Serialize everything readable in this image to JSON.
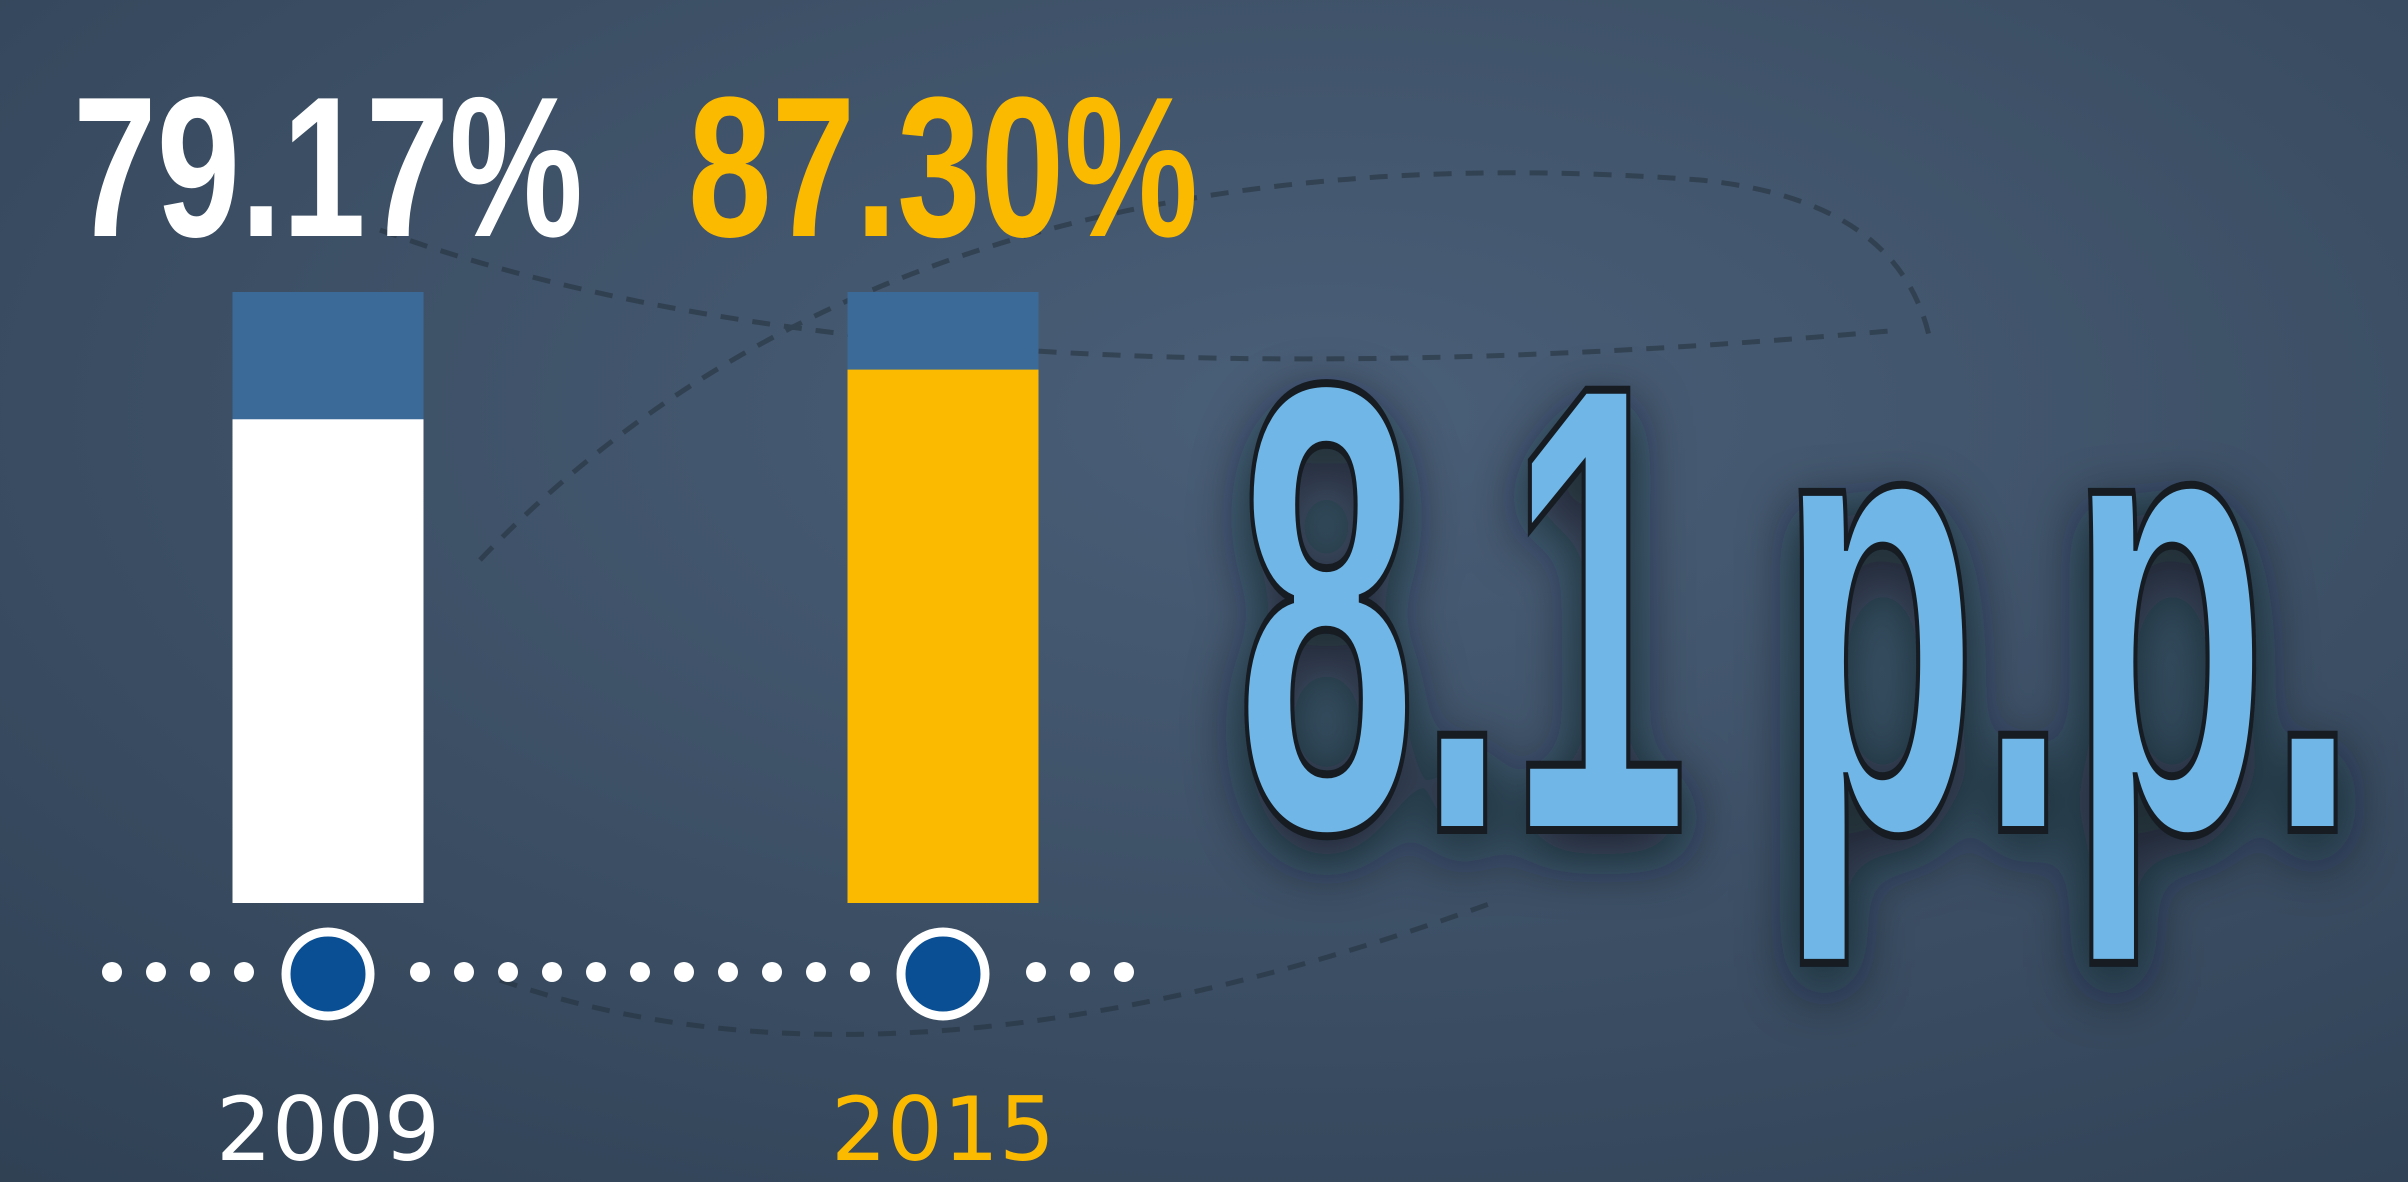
{
  "chart_data": {
    "type": "bar",
    "categories": [
      "2009",
      "2015"
    ],
    "values": [
      79.17,
      87.3
    ],
    "value_labels": [
      "79.17%",
      "87.30%"
    ],
    "colors": [
      "#ffffff",
      "#fbb900"
    ],
    "ylim": [
      0,
      100
    ],
    "annotation": "8.1 p.p."
  }
}
